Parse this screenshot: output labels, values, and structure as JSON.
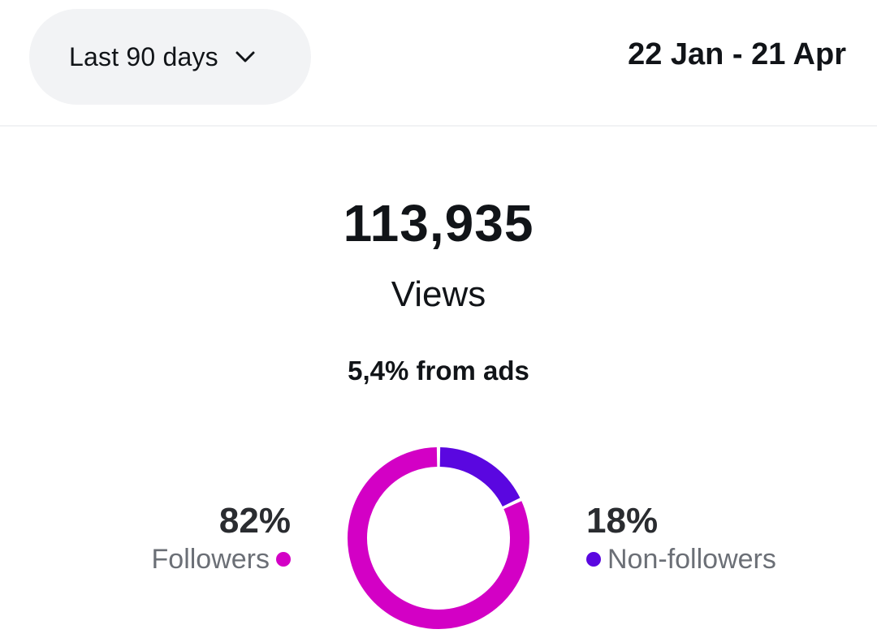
{
  "header": {
    "range_select_label": "Last 90 days",
    "date_range": "22 Jan - 21 Apr"
  },
  "summary": {
    "total": "113,935",
    "metric_label": "Views",
    "ads_note": "5,4% from ads"
  },
  "legend": {
    "followers": {
      "percent": "82%",
      "label": "Followers"
    },
    "non_followers": {
      "percent": "18%",
      "label": "Non-followers"
    }
  },
  "colors": {
    "followers": "#d300c5",
    "non_followers": "#5a07e0"
  },
  "icons": {
    "dropdown": "chevron-down-icon"
  },
  "chart_data": {
    "type": "pie",
    "categories": [
      "Followers",
      "Non-followers"
    ],
    "values": [
      82,
      18
    ],
    "colors": [
      "#d300c5",
      "#5a07e0"
    ]
  }
}
